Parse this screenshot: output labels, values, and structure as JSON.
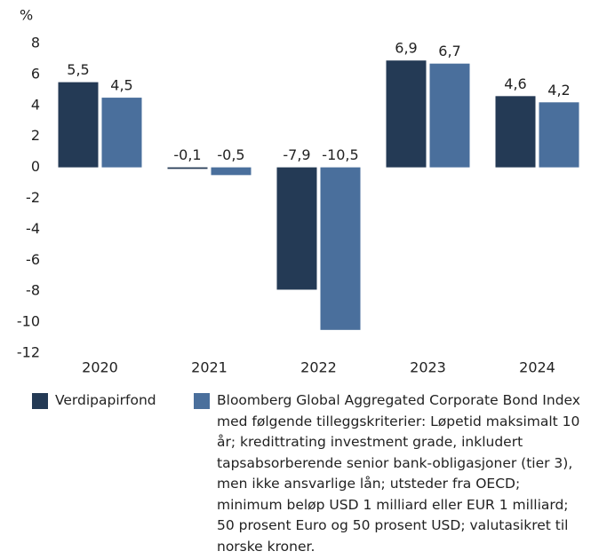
{
  "chart_data": {
    "type": "bar",
    "y_label": "%",
    "categories": [
      "2020",
      "2021",
      "2022",
      "2023",
      "2024"
    ],
    "series": [
      {
        "name": "Verdipapirfond",
        "color": "#243a55",
        "values": [
          5.5,
          -0.1,
          -7.9,
          6.9,
          4.6
        ],
        "value_labels": [
          "5,5",
          "-0,1",
          "-7,9",
          "6,9",
          "4,6"
        ]
      },
      {
        "name": "Bloomberg Global Aggregated Corporate Bond Index med følgende tilleggskriterier: Løpetid maksimalt 10 år; kredittrating investment grade, inkludert tapsabsorberende senior bank-obligasjoner (tier 3), men ikke ansvarlige lån; utsteder fra OECD; minimum beløp USD 1 milliard eller EUR 1 milliard; 50 prosent Euro og 50 prosent USD; valutasikret til norske kroner.",
        "color": "#4a6f9c",
        "values": [
          4.5,
          -0.5,
          -10.5,
          6.7,
          4.2
        ],
        "value_labels": [
          "4,5",
          "-0,5",
          "-10,5",
          "6,7",
          "4,2"
        ]
      }
    ],
    "ylim": [
      -12,
      8
    ],
    "yticks": [
      8,
      6,
      4,
      2,
      0,
      -2,
      -4,
      -6,
      -8,
      -10,
      -12
    ],
    "grid": false
  }
}
